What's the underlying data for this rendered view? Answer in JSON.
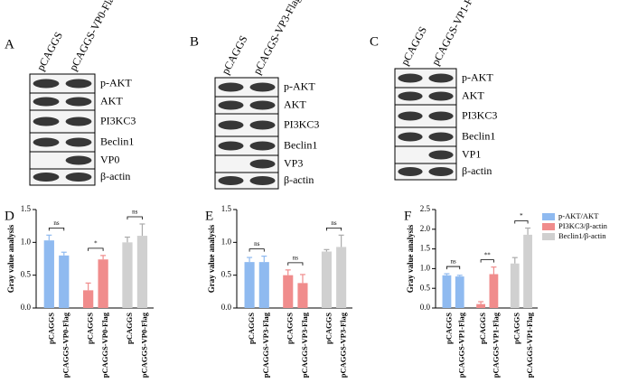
{
  "blots": [
    {
      "panel": "A",
      "lanes": [
        "pCAGGS",
        "pCAGGS-VP0-Flag"
      ],
      "bands": [
        "p-AKT",
        "AKT",
        "PI3KC3",
        "Beclin1",
        "VP0",
        "β-actin"
      ]
    },
    {
      "panel": "B",
      "lanes": [
        "pCAGGS",
        "pCAGGS-VP3-Flag"
      ],
      "bands": [
        "p-AKT",
        "AKT",
        "PI3KC3",
        "Beclin1",
        "VP3",
        "β-actin"
      ]
    },
    {
      "panel": "C",
      "lanes": [
        "pCAGGS",
        "pCAGGS-VP1-Flag"
      ],
      "bands": [
        "p-AKT",
        "AKT",
        "PI3KC3",
        "Beclin1",
        "VP1",
        "β-actin"
      ]
    }
  ],
  "chart_data": [
    {
      "type": "bar",
      "panel": "D",
      "y_label": "Gray value analysis",
      "categories": [
        "pCAGGS",
        "pCAGGS-VP0-Flag",
        "pCAGGS",
        "pCAGGS-VP0-Flag",
        "pCAGGS",
        "pCAGGS-VP0-Flag"
      ],
      "series": [
        {
          "color": "#8fbaf0",
          "values": [
            1.03,
            0.8,
            null,
            null,
            null,
            null
          ],
          "errors": [
            0.08,
            0.05,
            null,
            null,
            null,
            null
          ]
        },
        {
          "color": "#f08c8c",
          "values": [
            null,
            null,
            0.27,
            0.74,
            null,
            null
          ],
          "errors": [
            null,
            null,
            0.11,
            0.06,
            null,
            null
          ]
        },
        {
          "color": "#d0d0d0",
          "values": [
            null,
            null,
            null,
            null,
            1.0,
            1.1
          ],
          "errors": [
            null,
            null,
            null,
            null,
            0.08,
            0.18
          ]
        }
      ],
      "annotations": [
        "ns",
        "*",
        "ns"
      ],
      "ylim": [
        0,
        1.5
      ],
      "yticks": [
        {
          "value": 0,
          "label": "0.0"
        },
        0.5,
        {
          "value": 1,
          "label": "1.0"
        },
        1.5
      ]
    },
    {
      "type": "bar",
      "panel": "E",
      "y_label": "Gray value analysis",
      "categories": [
        "pCAGGS",
        "pCAGGS-VP3-Flag",
        "pCAGGS",
        "pCAGGS-VP3-Flag",
        "pCAGGS",
        "pCAGGS-VP3-Flag"
      ],
      "series": [
        {
          "color": "#8fbaf0",
          "values": [
            0.7,
            0.7,
            null,
            null,
            null,
            null
          ],
          "errors": [
            0.07,
            0.09,
            null,
            null,
            null,
            null
          ]
        },
        {
          "color": "#f08c8c",
          "values": [
            null,
            null,
            0.5,
            0.38,
            null,
            null
          ],
          "errors": [
            null,
            null,
            0.08,
            0.13,
            null,
            null
          ]
        },
        {
          "color": "#d0d0d0",
          "values": [
            null,
            null,
            null,
            null,
            0.86,
            0.93
          ],
          "errors": [
            null,
            null,
            null,
            null,
            0.03,
            0.18
          ]
        }
      ],
      "annotations": [
        "ns",
        "ns",
        "ns"
      ],
      "ylim": [
        0,
        1.5
      ],
      "yticks": [
        {
          "value": 0,
          "label": "0.0"
        },
        0.5,
        {
          "value": 1,
          "label": "1.0"
        },
        1.5
      ]
    },
    {
      "type": "bar",
      "panel": "F",
      "y_label": "Gray value analysis",
      "legend": true,
      "categories": [
        "pCAGGS",
        "pCAGGS-VP1-Flag",
        "pCAGGS",
        "pCAGGS-VP1-Flag",
        "pCAGGS",
        "pCAGGS-VP1-Flag"
      ],
      "series": [
        {
          "name": "p-AKT/AKT",
          "color": "#8fbaf0",
          "values": [
            0.83,
            0.8,
            null,
            null,
            null,
            null
          ],
          "errors": [
            0.04,
            0.03,
            null,
            null,
            null,
            null
          ]
        },
        {
          "name": "PI3KC3/β-actin",
          "color": "#f08c8c",
          "values": [
            null,
            null,
            0.1,
            0.86,
            null,
            null
          ],
          "errors": [
            null,
            null,
            0.06,
            0.18,
            null,
            null
          ]
        },
        {
          "name": "Beclin1/β-actin",
          "color": "#d0d0d0",
          "values": [
            null,
            null,
            null,
            null,
            1.13,
            1.86
          ],
          "errors": [
            null,
            null,
            null,
            null,
            0.15,
            0.17
          ]
        }
      ],
      "annotations": [
        "ns",
        "**",
        "*"
      ],
      "ylim": [
        0,
        2.5
      ],
      "yticks": [
        {
          "value": 0,
          "label": "0.0"
        },
        0.5,
        {
          "value": 1,
          "label": "1.0"
        },
        1.5,
        {
          "value": 2,
          "label": "2.0"
        },
        2.5
      ]
    }
  ]
}
